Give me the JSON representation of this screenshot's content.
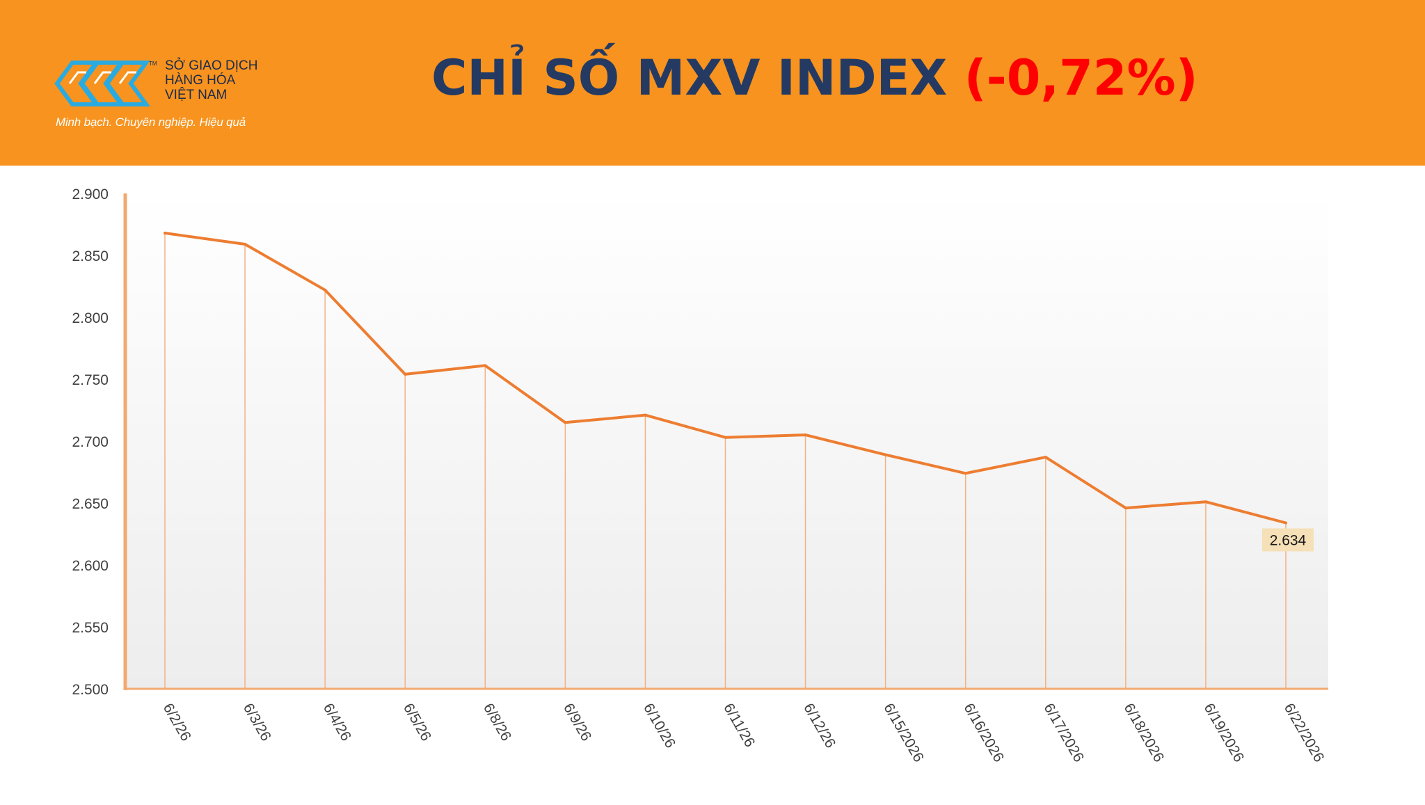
{
  "header": {
    "logo": {
      "name": "mxv-logo-icon",
      "trademark": "TM",
      "lines": [
        "SỞ GIAO DỊCH",
        "HÀNG HÓA",
        "VIỆT NAM"
      ],
      "tagline": "Minh bạch. Chuyên nghiệp. Hiệu quả"
    },
    "title_main": "CHỈ SỐ MXV INDEX",
    "title_change": "(-0,72%)",
    "colors": {
      "background": "#F7931E",
      "title": "#243A63",
      "change": "#FF0000"
    }
  },
  "chart_data": {
    "type": "line",
    "title": "CHỈ SỐ MXV INDEX (-0,72%)",
    "xlabel": "",
    "ylabel": "",
    "categories": [
      "6/2/26",
      "6/3/26",
      "6/4/26",
      "6/5/26",
      "6/8/26",
      "6/9/26",
      "6/10/26",
      "6/11/26",
      "6/12/26",
      "6/15/2026",
      "6/16/2026",
      "6/17/2026",
      "6/18/2026",
      "6/19/2026",
      "6/22/2026"
    ],
    "series": [
      {
        "values": [
          2868,
          2859,
          2822,
          2754,
          2761,
          2715,
          2721,
          2703,
          2705,
          2689,
          2674,
          2687,
          2646,
          2651,
          2634
        ],
        "color": "#ED7D31"
      }
    ],
    "ylim": [
      2500,
      2900
    ],
    "yticks": [
      2500,
      2550,
      2600,
      2650,
      2700,
      2750,
      2800,
      2850,
      2900
    ],
    "ytick_labels": [
      "2.500",
      "2.550",
      "2.600",
      "2.650",
      "2.700",
      "2.750",
      "2.800",
      "2.850",
      "2.900"
    ],
    "data_label": {
      "index": 14,
      "text": "2.634"
    },
    "drop_lines": true,
    "grid": false
  }
}
